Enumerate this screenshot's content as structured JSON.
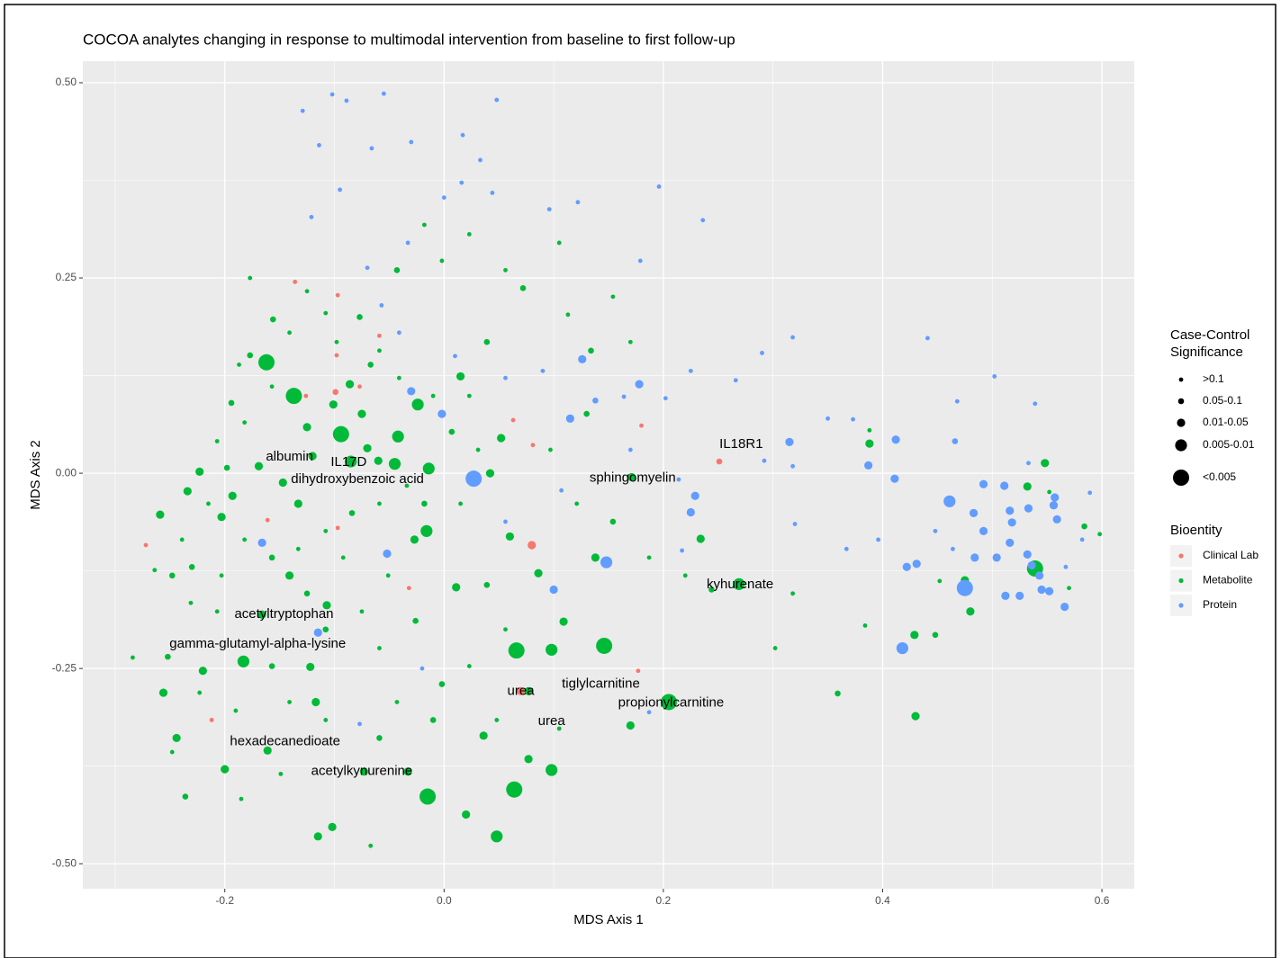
{
  "chart_data": {
    "type": "scatter",
    "title": "COCOA analytes changing in response to multimodal intervention from baseline to first follow-up",
    "x_label": "MDS Axis 1",
    "y_label": "MDS Axis 2",
    "xlim": [
      -0.3295,
      0.6295
    ],
    "ylim": [
      -0.532,
      0.5276
    ],
    "xticks": [
      -0.2,
      {
        "value": 0.0,
        "label": "0.0"
      },
      0.2,
      0.4,
      0.6
    ],
    "yticks": [
      {
        "value": -0.5,
        "label": "-0.50"
      },
      -0.25,
      {
        "value": 0.0,
        "label": "0.00"
      },
      0.25,
      {
        "value": 0.5,
        "label": "0.50"
      }
    ],
    "minor_xticks": [
      -0.3,
      -0.1,
      0.1,
      0.3,
      0.5
    ],
    "minor_yticks": [
      -0.375,
      -0.125,
      0.125,
      0.375
    ],
    "grid": true,
    "size_legend_title": [
      "Case-Control",
      "Significance"
    ],
    "size_levels": [
      ">0.1",
      "0.05-0.1",
      "0.01-0.05",
      "0.005-0.01",
      "<0.005"
    ],
    "color_legend_title": "Bioentity",
    "series": [
      {
        "name": "Clinical Lab",
        "color": "#F8766D",
        "x": [
          -0.272,
          -0.136,
          -0.097,
          -0.098,
          -0.059,
          -0.126,
          -0.077,
          0.063,
          0.081,
          0.18,
          0.251,
          -0.032,
          0.177,
          -0.212,
          -0.161,
          -0.097,
          0.08,
          0.07,
          -0.099
        ],
        "y": [
          -0.092,
          0.245,
          0.228,
          0.151,
          0.176,
          0.099,
          0.111,
          0.068,
          0.036,
          0.061,
          0.015,
          -0.147,
          -0.253,
          -0.316,
          -0.06,
          -0.07,
          -0.092,
          -0.279,
          0.104
        ],
        "significance": [
          ">0.1",
          ">0.1",
          ">0.1",
          ">0.1",
          ">0.1",
          ">0.1",
          ">0.1",
          ">0.1",
          ">0.1",
          ">0.1",
          "0.05-0.1",
          ">0.1",
          ">0.1",
          ">0.1",
          ">0.1",
          ">0.1",
          "0.01-0.05",
          "0.01-0.05",
          "0.05-0.1"
        ]
      },
      {
        "name": "Metabolite",
        "color": "#00BA38",
        "x": [
          -0.162,
          -0.137,
          -0.094,
          -0.042,
          -0.014,
          -0.045,
          -0.085,
          0.064,
          -0.015,
          0.048,
          0.066,
          0.146,
          0.205,
          0.269,
          0.539,
          -0.183,
          -0.024,
          -0.223,
          0.098,
          -0.016,
          0.098,
          0.077,
          0.036,
          0.02,
          -0.102,
          -0.115,
          -0.073,
          -0.033,
          -0.161,
          -0.244,
          -0.2,
          -0.256,
          -0.22,
          -0.122,
          -0.117,
          -0.107,
          -0.166,
          0.17,
          0.43,
          0.429,
          0.171,
          0.234,
          0.086,
          0.109,
          0.011,
          0.06,
          -0.027,
          -0.141,
          -0.259,
          -0.234,
          -0.203,
          -0.193,
          -0.147,
          -0.133,
          -0.169,
          -0.125,
          -0.101,
          -0.075,
          -0.06,
          0.015,
          0.052,
          0.042,
          0.138,
          0.077,
          0.532,
          0.548,
          0.475,
          0.48,
          0.388,
          -0.086,
          -0.07,
          -0.12,
          -0.177,
          -0.156,
          -0.125,
          -0.108,
          -0.077,
          -0.059,
          -0.041,
          -0.067,
          -0.098,
          -0.141,
          -0.177,
          -0.187,
          -0.157,
          -0.194,
          -0.182,
          -0.207,
          -0.198,
          -0.215,
          -0.239,
          -0.23,
          -0.203,
          -0.182,
          -0.157,
          -0.133,
          -0.108,
          -0.084,
          -0.059,
          -0.034,
          -0.018,
          0.015,
          0.031,
          0.007,
          -0.01,
          0.023,
          0.039,
          0.056,
          -0.002,
          -0.043,
          -0.018,
          0.023,
          0.072,
          0.105,
          0.113,
          0.134,
          0.154,
          0.17,
          0.13,
          0.097,
          0.121,
          0.154,
          0.187,
          0.22,
          0.244,
          0.302,
          0.318,
          0.359,
          0.384,
          0.388,
          0.448,
          0.452,
          0.57,
          0.584,
          0.598,
          0.552,
          0.039,
          0.056,
          0.023,
          -0.002,
          0.048,
          0.105,
          -0.01,
          -0.043,
          -0.067,
          -0.059,
          -0.108,
          -0.141,
          -0.157,
          -0.19,
          -0.223,
          -0.252,
          -0.284,
          -0.248,
          -0.236,
          -0.185,
          -0.149,
          -0.108,
          -0.075,
          -0.059,
          -0.026,
          -0.051,
          -0.092,
          -0.125,
          -0.207,
          -0.231,
          -0.248,
          -0.264
        ],
        "y": [
          0.142,
          0.099,
          0.05,
          0.047,
          0.006,
          0.012,
          0.015,
          -0.405,
          -0.414,
          -0.465,
          -0.227,
          -0.221,
          -0.293,
          -0.142,
          -0.122,
          -0.241,
          0.088,
          0.002,
          -0.226,
          -0.074,
          -0.38,
          -0.366,
          -0.336,
          -0.437,
          -0.453,
          -0.465,
          -0.382,
          -0.382,
          -0.355,
          -0.339,
          -0.379,
          -0.281,
          -0.253,
          -0.248,
          -0.293,
          -0.169,
          -0.181,
          -0.323,
          -0.311,
          -0.207,
          -0.005,
          -0.084,
          -0.128,
          -0.19,
          -0.146,
          -0.081,
          -0.085,
          -0.131,
          -0.053,
          -0.023,
          -0.056,
          -0.029,
          -0.012,
          -0.039,
          0.009,
          0.059,
          0.088,
          0.076,
          0.016,
          0.124,
          0.045,
          0.0,
          -0.108,
          -0.279,
          -0.017,
          0.013,
          -0.137,
          -0.177,
          0.038,
          0.114,
          0.032,
          0.022,
          0.25,
          0.197,
          0.233,
          0.205,
          0.2,
          0.157,
          0.122,
          0.139,
          0.168,
          0.18,
          0.151,
          0.139,
          0.111,
          0.09,
          0.065,
          0.041,
          0.007,
          -0.039,
          -0.085,
          -0.12,
          -0.131,
          -0.085,
          -0.108,
          -0.097,
          -0.074,
          -0.051,
          -0.039,
          -0.016,
          -0.039,
          -0.039,
          0.03,
          0.053,
          0.099,
          0.099,
          0.168,
          0.26,
          0.272,
          0.26,
          0.318,
          0.306,
          0.237,
          0.295,
          0.203,
          0.157,
          0.226,
          0.168,
          0.076,
          0.03,
          -0.039,
          -0.062,
          -0.108,
          -0.131,
          -0.149,
          -0.224,
          -0.154,
          -0.282,
          -0.195,
          0.055,
          -0.207,
          -0.138,
          -0.147,
          -0.068,
          -0.078,
          -0.024,
          -0.143,
          -0.2,
          -0.247,
          -0.27,
          -0.316,
          -0.327,
          -0.316,
          -0.293,
          -0.477,
          -0.339,
          -0.316,
          -0.293,
          -0.247,
          -0.304,
          -0.281,
          -0.235,
          -0.236,
          -0.357,
          -0.414,
          -0.417,
          -0.385,
          -0.2,
          -0.177,
          -0.224,
          -0.189,
          -0.131,
          -0.108,
          -0.154,
          -0.177,
          -0.166,
          -0.131,
          -0.124
        ],
        "significance": [
          "<0.005",
          "<0.005",
          "<0.005",
          "0.005-0.01",
          "0.005-0.01",
          "0.005-0.01",
          "0.005-0.01",
          "<0.005",
          "<0.005",
          "0.005-0.01",
          "<0.005",
          "<0.005",
          "<0.005",
          "0.005-0.01",
          "<0.005",
          "0.005-0.01",
          "0.005-0.01",
          "0.01-0.05",
          "0.005-0.01",
          "0.005-0.01",
          "0.005-0.01",
          "0.01-0.05",
          "0.01-0.05",
          "0.01-0.05",
          "0.01-0.05",
          "0.01-0.05",
          "0.01-0.05",
          "0.01-0.05",
          "0.01-0.05",
          "0.01-0.05",
          "0.01-0.05",
          "0.01-0.05",
          "0.01-0.05",
          "0.01-0.05",
          "0.01-0.05",
          "0.01-0.05",
          "0.01-0.05",
          "0.01-0.05",
          "0.01-0.05",
          "0.01-0.05",
          "0.01-0.05",
          "0.01-0.05",
          "0.01-0.05",
          "0.01-0.05",
          "0.01-0.05",
          "0.01-0.05",
          "0.01-0.05",
          "0.01-0.05",
          "0.01-0.05",
          "0.01-0.05",
          "0.01-0.05",
          "0.01-0.05",
          "0.01-0.05",
          "0.01-0.05",
          "0.01-0.05",
          "0.01-0.05",
          "0.01-0.05",
          "0.01-0.05",
          "0.01-0.05",
          "0.01-0.05",
          "0.01-0.05",
          "0.01-0.05",
          "0.01-0.05",
          "0.01-0.05",
          "0.01-0.05",
          "0.01-0.05",
          "0.01-0.05",
          "0.01-0.05",
          "0.01-0.05",
          "0.01-0.05",
          "0.01-0.05",
          "0.01-0.05",
          ">0.1",
          "0.05-0.1",
          ">0.1",
          ">0.1",
          "0.05-0.1",
          ">0.1",
          ">0.1",
          "0.05-0.1",
          ">0.1",
          ">0.1",
          "0.05-0.1",
          ">0.1",
          ">0.1",
          "0.05-0.1",
          ">0.1",
          ">0.1",
          "0.05-0.1",
          ">0.1",
          ">0.1",
          "0.05-0.1",
          ">0.1",
          ">0.1",
          "0.05-0.1",
          ">0.1",
          ">0.1",
          "0.05-0.1",
          ">0.1",
          ">0.1",
          "0.05-0.1",
          ">0.1",
          ">0.1",
          "0.05-0.1",
          ">0.1",
          ">0.1",
          "0.05-0.1",
          ">0.1",
          ">0.1",
          "0.05-0.1",
          ">0.1",
          ">0.1",
          "0.05-0.1",
          ">0.1",
          ">0.1",
          "0.05-0.1",
          ">0.1",
          ">0.1",
          "0.05-0.1",
          ">0.1",
          ">0.1",
          "0.05-0.1",
          ">0.1",
          ">0.1",
          "0.05-0.1",
          ">0.1",
          ">0.1",
          "0.05-0.1",
          ">0.1",
          ">0.1",
          "0.05-0.1",
          ">0.1",
          ">0.1",
          "0.05-0.1",
          ">0.1",
          ">0.1",
          "0.05-0.1",
          ">0.1",
          ">0.1",
          "0.05-0.1",
          ">0.1",
          ">0.1",
          "0.05-0.1",
          ">0.1",
          ">0.1",
          "0.05-0.1",
          ">0.1",
          ">0.1",
          "0.05-0.1",
          ">0.1",
          ">0.1",
          "0.05-0.1",
          ">0.1",
          ">0.1",
          "0.05-0.1",
          ">0.1",
          ">0.1",
          "0.05-0.1",
          ">0.1",
          ">0.1",
          "0.05-0.1",
          ">0.1",
          ">0.1",
          "0.05-0.1",
          ">0.1",
          ">0.1",
          "0.05-0.1"
        ]
      },
      {
        "name": "Protein",
        "color": "#619CFF",
        "x": [
          0.027,
          0.475,
          0.461,
          0.418,
          0.148,
          0.126,
          0.178,
          -0.03,
          0.115,
          -0.002,
          0.315,
          0.387,
          0.411,
          0.412,
          0.492,
          0.511,
          0.483,
          0.516,
          0.518,
          0.533,
          0.556,
          0.559,
          0.492,
          0.484,
          0.516,
          0.512,
          0.525,
          0.545,
          0.552,
          0.566,
          0.431,
          0.422,
          0.504,
          0.225,
          0.229,
          0.1,
          -0.166,
          -0.052,
          -0.115,
          0.536,
          0.543,
          0.557,
          0.532,
          -0.102,
          -0.055,
          -0.089,
          -0.129,
          -0.114,
          -0.066,
          -0.03,
          0.017,
          0.048,
          0.033,
          -0.095,
          -0.121,
          0.0,
          0.016,
          0.044,
          0.196,
          0.236,
          0.096,
          0.122,
          0.179,
          -0.033,
          -0.07,
          -0.057,
          -0.041,
          0.01,
          0.056,
          0.09,
          0.138,
          0.164,
          0.202,
          0.225,
          0.266,
          0.29,
          0.318,
          0.441,
          0.502,
          0.468,
          0.539,
          0.373,
          0.35,
          0.466,
          0.533,
          0.589,
          0.582,
          0.567,
          0.396,
          0.367,
          0.32,
          0.187,
          0.217,
          -0.02,
          -0.077,
          0.056,
          0.107,
          0.17,
          0.214,
          0.292,
          0.318,
          0.448,
          0.464
        ],
        "y": [
          -0.007,
          -0.147,
          -0.036,
          -0.224,
          -0.114,
          0.146,
          0.114,
          0.105,
          0.07,
          0.076,
          0.04,
          0.01,
          -0.007,
          0.043,
          -0.014,
          -0.016,
          -0.051,
          -0.048,
          -0.063,
          -0.045,
          -0.041,
          -0.059,
          -0.074,
          -0.108,
          -0.089,
          -0.157,
          -0.157,
          -0.149,
          -0.151,
          -0.171,
          -0.116,
          -0.12,
          -0.108,
          -0.05,
          -0.029,
          -0.149,
          -0.089,
          -0.103,
          -0.204,
          -0.118,
          -0.131,
          -0.031,
          -0.104,
          0.485,
          0.486,
          0.477,
          0.464,
          0.42,
          0.416,
          0.424,
          0.433,
          0.478,
          0.401,
          0.363,
          0.328,
          0.353,
          0.372,
          0.359,
          0.367,
          0.324,
          0.338,
          0.347,
          0.272,
          0.295,
          0.263,
          0.215,
          0.18,
          0.15,
          0.122,
          0.131,
          0.093,
          0.098,
          0.096,
          0.131,
          0.119,
          0.154,
          0.174,
          0.173,
          0.124,
          0.092,
          0.089,
          0.069,
          0.07,
          0.041,
          0.013,
          -0.025,
          -0.085,
          -0.12,
          -0.085,
          -0.097,
          -0.065,
          -0.306,
          -0.099,
          -0.25,
          -0.321,
          -0.062,
          -0.022,
          0.03,
          -0.008,
          0.016,
          0.009,
          -0.074,
          -0.097
        ],
        "significance": [
          "<0.005",
          "<0.005",
          "0.005-0.01",
          "0.005-0.01",
          "0.005-0.01",
          "0.01-0.05",
          "0.01-0.05",
          "0.01-0.05",
          "0.01-0.05",
          "0.01-0.05",
          "0.01-0.05",
          "0.01-0.05",
          "0.01-0.05",
          "0.01-0.05",
          "0.01-0.05",
          "0.01-0.05",
          "0.01-0.05",
          "0.01-0.05",
          "0.01-0.05",
          "0.01-0.05",
          "0.01-0.05",
          "0.01-0.05",
          "0.01-0.05",
          "0.01-0.05",
          "0.01-0.05",
          "0.01-0.05",
          "0.01-0.05",
          "0.01-0.05",
          "0.01-0.05",
          "0.01-0.05",
          "0.01-0.05",
          "0.01-0.05",
          "0.01-0.05",
          "0.01-0.05",
          "0.01-0.05",
          "0.01-0.05",
          "0.01-0.05",
          "0.01-0.05",
          "0.01-0.05",
          "0.01-0.05",
          "0.01-0.05",
          "0.01-0.05",
          "0.01-0.05",
          ">0.1",
          ">0.1",
          ">0.1",
          ">0.1",
          ">0.1",
          ">0.1",
          ">0.1",
          ">0.1",
          ">0.1",
          ">0.1",
          ">0.1",
          ">0.1",
          ">0.1",
          ">0.1",
          ">0.1",
          ">0.1",
          ">0.1",
          ">0.1",
          ">0.1",
          ">0.1",
          ">0.1",
          ">0.1",
          ">0.1",
          ">0.1",
          ">0.1",
          ">0.1",
          ">0.1",
          "0.05-0.1",
          ">0.1",
          ">0.1",
          ">0.1",
          ">0.1",
          ">0.1",
          ">0.1",
          ">0.1",
          ">0.1",
          ">0.1",
          ">0.1",
          ">0.1",
          ">0.1",
          "0.05-0.1",
          ">0.1",
          ">0.1",
          ">0.1",
          ">0.1",
          ">0.1",
          ">0.1",
          ">0.1",
          ">0.1",
          ">0.1",
          ">0.1",
          ">0.1",
          ">0.1",
          ">0.1",
          ">0.1",
          ">0.1",
          ">0.1",
          ">0.1",
          ">0.1"
        ]
      }
    ],
    "annotations": [
      {
        "text": "albumin",
        "x": -0.141,
        "y": 0.021
      },
      {
        "text": "IL17D",
        "x": -0.087,
        "y": 0.014
      },
      {
        "text": "dihydroxybenzoic acid",
        "x": -0.079,
        "y": -0.008
      },
      {
        "text": "sphingomyelin",
        "x": 0.172,
        "y": -0.006
      },
      {
        "text": "IL18R1",
        "x": 0.271,
        "y": 0.037
      },
      {
        "text": "kyhurenate",
        "x": 0.27,
        "y": -0.143
      },
      {
        "text": "acetyltryptophan",
        "x": -0.146,
        "y": -0.181
      },
      {
        "text": "gamma-glutamyl-alpha-lysine",
        "x": -0.17,
        "y": -0.219
      },
      {
        "text": "urea",
        "x": 0.07,
        "y": -0.279
      },
      {
        "text": "tiglylcarnitine",
        "x": 0.143,
        "y": -0.27
      },
      {
        "text": "propionylcarnitine",
        "x": 0.207,
        "y": -0.294
      },
      {
        "text": "urea",
        "x": 0.098,
        "y": -0.318
      },
      {
        "text": "hexadecanedioate",
        "x": -0.145,
        "y": -0.344
      },
      {
        "text": "acetylkynurenine",
        "x": -0.075,
        "y": -0.382
      }
    ]
  }
}
